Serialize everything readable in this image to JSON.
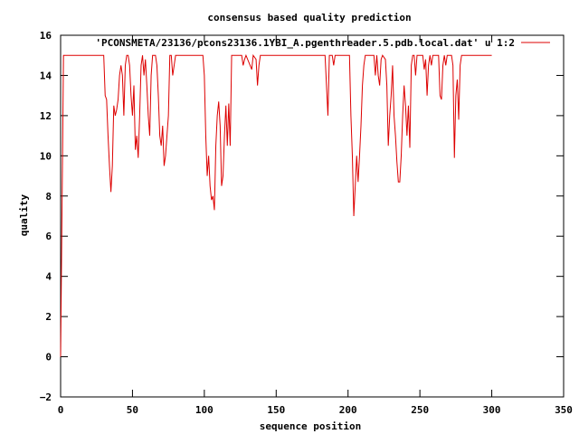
{
  "chart_data": {
    "type": "line",
    "title": "consensus based quality prediction",
    "xlabel": "sequence position",
    "ylabel": "quality",
    "xlim": [
      0,
      350
    ],
    "ylim": [
      -2,
      16
    ],
    "xticks": [
      0,
      50,
      100,
      150,
      200,
      250,
      300,
      350
    ],
    "yticks": [
      -2,
      0,
      2,
      4,
      6,
      8,
      10,
      12,
      14,
      16
    ],
    "grid": false,
    "legend_position": "top-right",
    "series": [
      {
        "name": "'PCONSMETA/23136/pcons23136.1YBI_A.pgenthreader.5.pdb.local.dat' u 1:2",
        "color": "#dd0000",
        "points": [
          [
            0,
            0
          ],
          [
            1,
            7.5
          ],
          [
            2,
            15
          ],
          [
            30,
            15
          ],
          [
            31,
            13
          ],
          [
            32,
            12.8
          ],
          [
            33,
            11
          ],
          [
            34,
            9.5
          ],
          [
            35,
            8.2
          ],
          [
            36,
            9.5
          ],
          [
            37,
            12.5
          ],
          [
            38,
            12
          ],
          [
            39,
            12.3
          ],
          [
            40,
            12.8
          ],
          [
            41,
            14
          ],
          [
            42,
            14.5
          ],
          [
            43,
            14
          ],
          [
            44,
            12
          ],
          [
            45,
            14.5
          ],
          [
            46,
            15
          ],
          [
            47,
            15
          ],
          [
            48,
            14.5
          ],
          [
            49,
            13
          ],
          [
            50,
            12
          ],
          [
            51,
            13.5
          ],
          [
            52,
            10.3
          ],
          [
            53,
            11
          ],
          [
            54,
            9.9
          ],
          [
            55,
            12
          ],
          [
            56,
            14.5
          ],
          [
            57,
            15
          ],
          [
            58,
            14
          ],
          [
            59,
            14.8
          ],
          [
            60,
            13.5
          ],
          [
            61,
            12
          ],
          [
            62,
            11
          ],
          [
            63,
            14
          ],
          [
            64,
            15
          ],
          [
            65,
            15
          ],
          [
            66,
            15
          ],
          [
            67,
            14.5
          ],
          [
            68,
            13
          ],
          [
            69,
            11
          ],
          [
            70,
            10.5
          ],
          [
            71,
            11.5
          ],
          [
            72,
            9.5
          ],
          [
            73,
            10
          ],
          [
            74,
            11
          ],
          [
            75,
            12
          ],
          [
            76,
            15
          ],
          [
            77,
            15
          ],
          [
            78,
            14
          ],
          [
            79,
            14.5
          ],
          [
            80,
            15
          ],
          [
            99,
            15
          ],
          [
            100,
            14
          ],
          [
            101,
            11
          ],
          [
            102,
            9
          ],
          [
            103,
            10
          ],
          [
            104,
            8.5
          ],
          [
            105,
            7.8
          ],
          [
            106,
            8
          ],
          [
            107,
            7.3
          ],
          [
            108,
            10.5
          ],
          [
            109,
            12
          ],
          [
            110,
            12.7
          ],
          [
            111,
            11.5
          ],
          [
            112,
            8.5
          ],
          [
            113,
            9
          ],
          [
            114,
            11
          ],
          [
            115,
            12.5
          ],
          [
            116,
            10.5
          ],
          [
            117,
            12.6
          ],
          [
            118,
            10.5
          ],
          [
            119,
            15
          ],
          [
            126,
            15
          ],
          [
            127,
            14.5
          ],
          [
            128,
            14.8
          ],
          [
            129,
            15
          ],
          [
            133,
            14.3
          ],
          [
            134,
            15
          ],
          [
            136,
            14.8
          ],
          [
            137,
            13.5
          ],
          [
            138,
            14.5
          ],
          [
            139,
            15
          ],
          [
            184,
            15
          ],
          [
            185,
            13.5
          ],
          [
            186,
            12
          ],
          [
            187,
            15
          ],
          [
            189,
            15
          ],
          [
            190,
            14.5
          ],
          [
            191,
            15
          ],
          [
            201,
            15
          ],
          [
            202,
            12
          ],
          [
            203,
            10
          ],
          [
            204,
            7
          ],
          [
            205,
            8.5
          ],
          [
            206,
            10
          ],
          [
            207,
            8.7
          ],
          [
            208,
            10
          ],
          [
            209,
            11.5
          ],
          [
            210,
            13.5
          ],
          [
            211,
            14.5
          ],
          [
            212,
            15
          ],
          [
            218,
            15
          ],
          [
            219,
            14
          ],
          [
            220,
            15
          ],
          [
            221,
            14
          ],
          [
            222,
            13.5
          ],
          [
            223,
            14.8
          ],
          [
            224,
            15
          ],
          [
            226,
            14.8
          ],
          [
            227,
            13.5
          ],
          [
            228,
            10.5
          ],
          [
            229,
            12
          ],
          [
            230,
            13
          ],
          [
            231,
            14.5
          ],
          [
            232,
            12
          ],
          [
            233,
            11
          ],
          [
            234,
            9.7
          ],
          [
            235,
            8.7
          ],
          [
            236,
            8.7
          ],
          [
            237,
            10
          ],
          [
            238,
            12
          ],
          [
            239,
            13.5
          ],
          [
            240,
            12.5
          ],
          [
            241,
            11
          ],
          [
            242,
            12.5
          ],
          [
            243,
            10.4
          ],
          [
            244,
            14.5
          ],
          [
            245,
            15
          ],
          [
            246,
            15
          ],
          [
            247,
            14
          ],
          [
            248,
            15
          ],
          [
            252,
            15
          ],
          [
            253,
            14.3
          ],
          [
            254,
            14.8
          ],
          [
            255,
            13
          ],
          [
            256,
            14.5
          ],
          [
            257,
            15
          ],
          [
            258,
            14.5
          ],
          [
            259,
            15
          ],
          [
            263,
            15
          ],
          [
            264,
            13
          ],
          [
            265,
            12.8
          ],
          [
            266,
            14.5
          ],
          [
            267,
            15
          ],
          [
            268,
            14.5
          ],
          [
            269,
            15
          ],
          [
            272,
            15
          ],
          [
            273,
            14.5
          ],
          [
            274,
            9.9
          ],
          [
            275,
            13
          ],
          [
            276,
            13.8
          ],
          [
            277,
            11.8
          ],
          [
            278,
            14.5
          ],
          [
            279,
            15
          ],
          [
            300,
            15
          ]
        ]
      }
    ]
  }
}
